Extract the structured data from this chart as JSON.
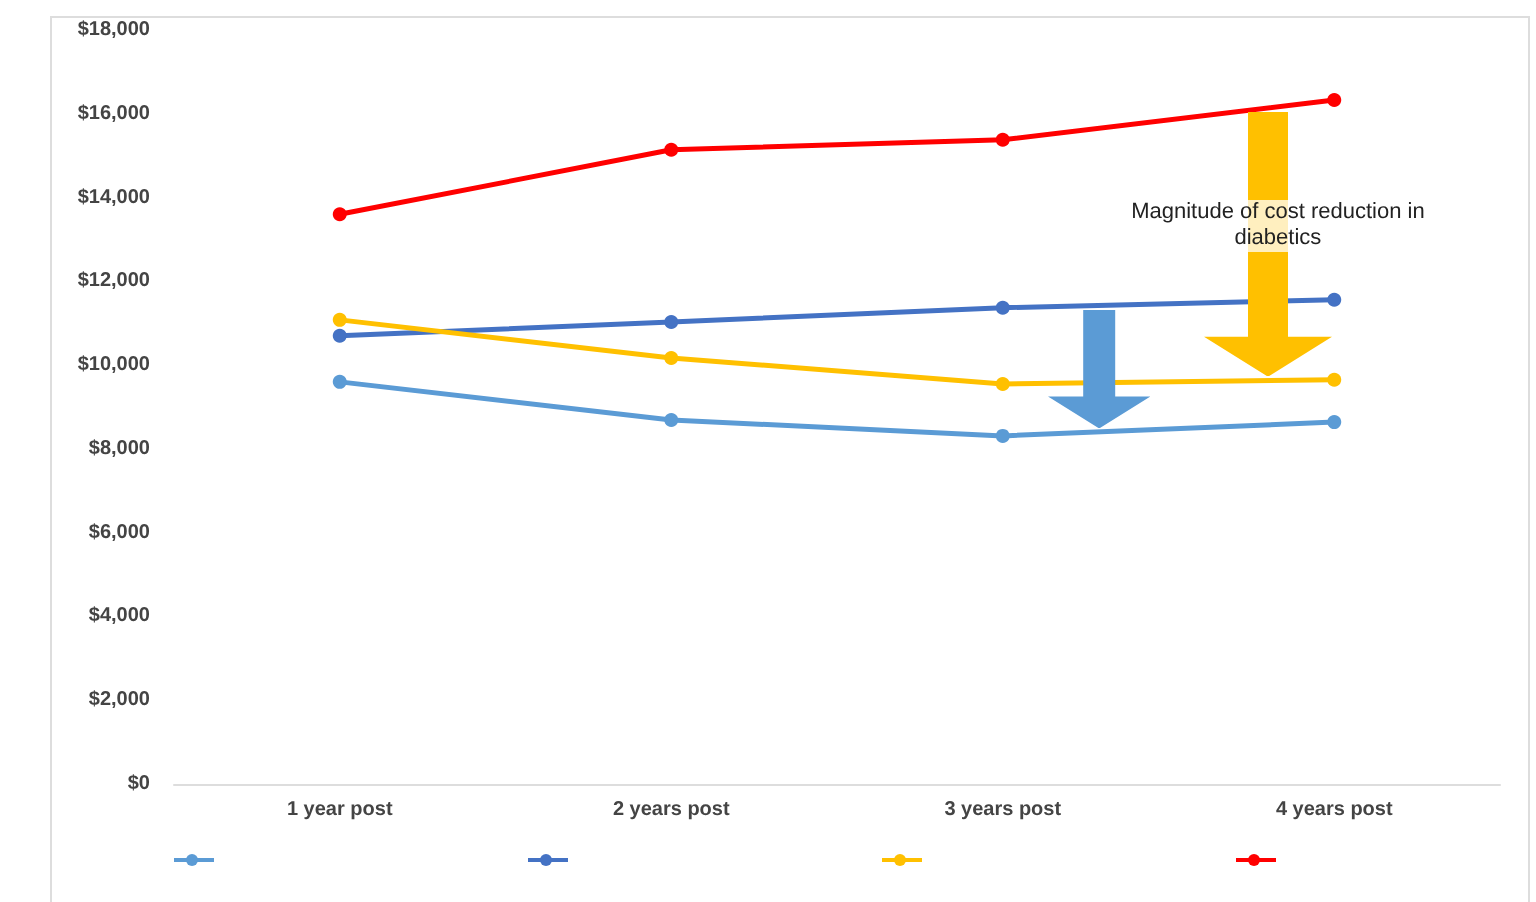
{
  "chart_data": {
    "type": "line",
    "categories": [
      "1 year post",
      "2 years post",
      "3 years post",
      "4 years post"
    ],
    "series": [
      {
        "color": "#5b9bd5",
        "values": [
          9600,
          8690,
          8310,
          8640
        ]
      },
      {
        "color": "#4472c4",
        "values": [
          10700,
          11030,
          11370,
          11560
        ]
      },
      {
        "color": "#ffc000",
        "values": [
          11080,
          10170,
          9550,
          9650
        ]
      },
      {
        "color": "#ff0000",
        "values": [
          13600,
          15140,
          15380,
          16330
        ]
      }
    ],
    "ylim": [
      0,
      18000
    ],
    "yticks": [
      {
        "value": 0,
        "label": "$0"
      },
      {
        "value": 2000,
        "label": "$2,000"
      },
      {
        "value": 4000,
        "label": "$4,000"
      },
      {
        "value": 6000,
        "label": "$6,000"
      },
      {
        "value": 8000,
        "label": "$8,000"
      },
      {
        "value": 10000,
        "label": "$10,000"
      },
      {
        "value": 12000,
        "label": "$12,000"
      },
      {
        "value": 14000,
        "label": "$14,000"
      },
      {
        "value": 16000,
        "label": "$16,000"
      },
      {
        "value": 18000,
        "label": "$18,000"
      }
    ],
    "annotations": [
      "Magnitude of cost reduction in diabetics"
    ],
    "grid": false,
    "marker": "circle",
    "line_style": "solid"
  }
}
